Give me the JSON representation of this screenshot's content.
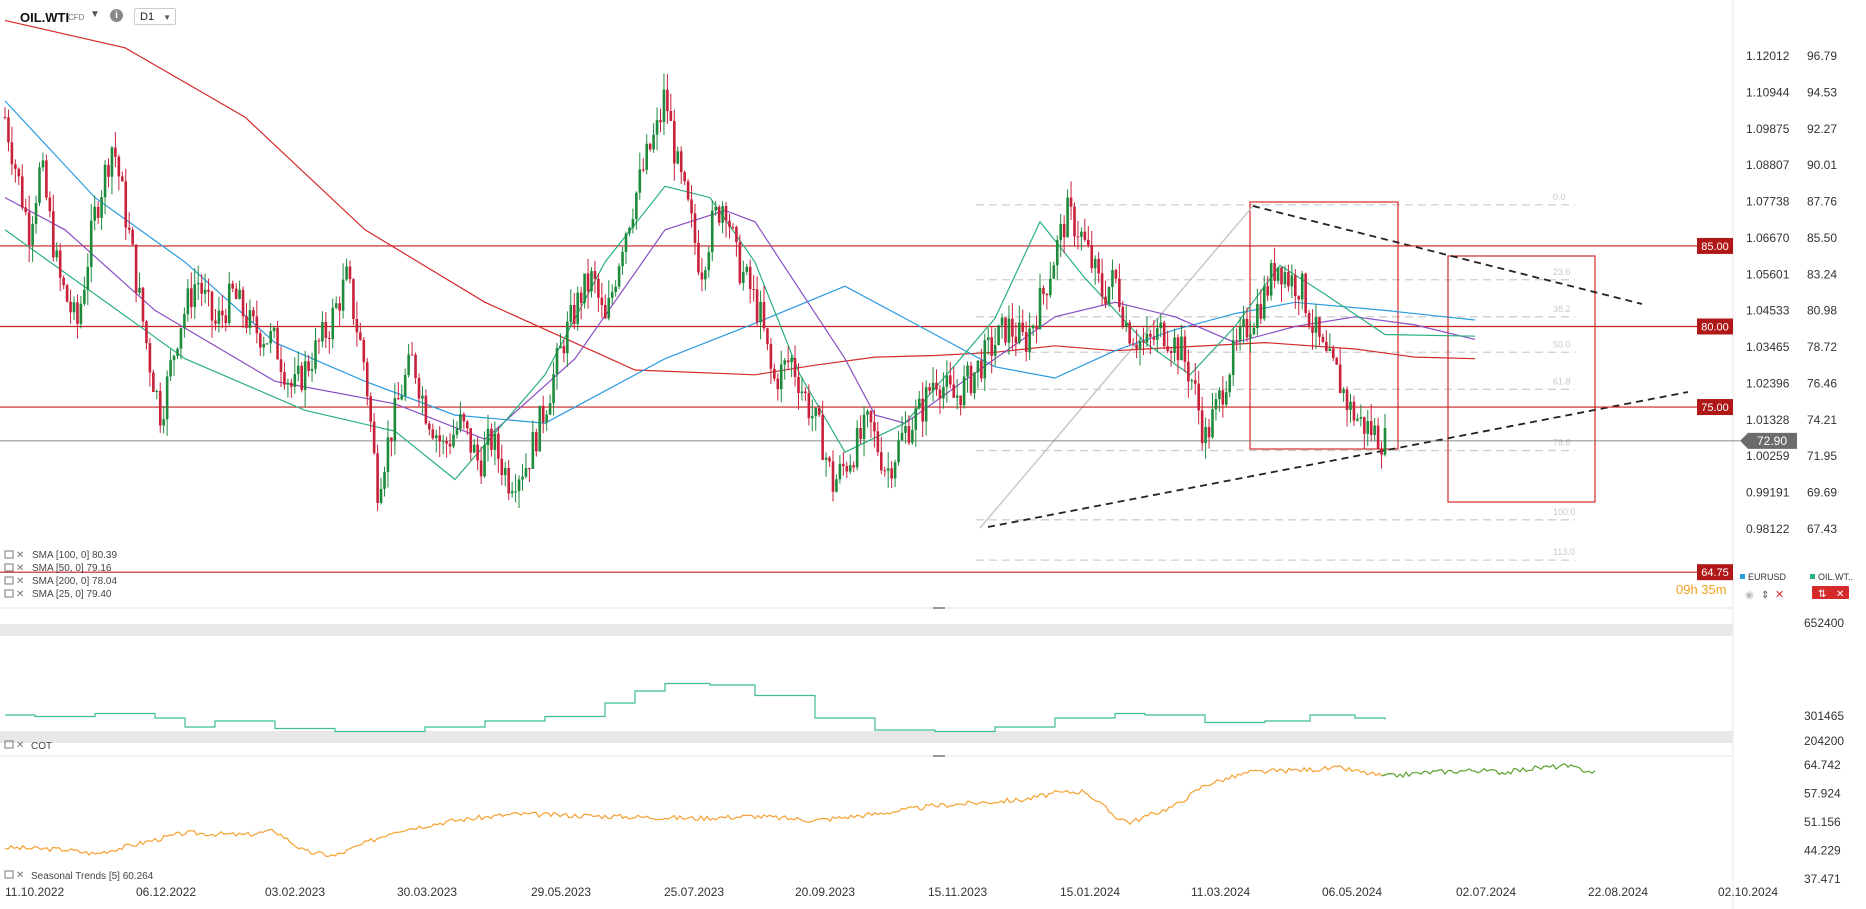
{
  "toolbar": {
    "symbol": "OIL.WTI",
    "symbol_type": "CFD",
    "timeframe": "D1"
  },
  "chart_data": [
    {
      "type": "line",
      "panel": "price",
      "series_kind": "candlestick",
      "x_ticks": [
        "11.10.2022",
        "06.12.2022",
        "03.02.2023",
        "30.03.2023",
        "29.05.2023",
        "25.07.2023",
        "20.09.2023",
        "15.11.2023",
        "15.01.2024",
        "11.03.2024",
        "06.05.2024",
        "02.07.2024",
        "22.08.2024",
        "02.10.2024"
      ],
      "y_ticks_left": [
        "1.12012",
        "1.10944",
        "1.09875",
        "1.08807",
        "1.07738",
        "1.06670",
        "1.05601",
        "1.04533",
        "1.03465",
        "1.02396",
        "1.01328",
        "1.00259",
        "0.99191",
        "0.98122"
      ],
      "y_ticks_right": [
        "96.79",
        "94.53",
        "92.27",
        "90.01",
        "87.76",
        "85.50",
        "83.24",
        "80.98",
        "78.72",
        "76.46",
        "74.21",
        "71.95",
        "69.69",
        "67.43"
      ],
      "ylim": [
        64.0,
        98.0
      ],
      "price_levels": [
        {
          "label": "85.00",
          "value": 85.0
        },
        {
          "label": "80.00",
          "value": 80.0
        },
        {
          "label": "75.00",
          "value": 75.0
        },
        {
          "label": "64.75",
          "value": 64.75
        }
      ],
      "current_price": {
        "label": "72.90",
        "value": 72.9
      },
      "countdown": "09h 35m",
      "fib_levels": [
        {
          "label": "0.0",
          "value": 87.55
        },
        {
          "label": "23.6",
          "value": 82.9
        },
        {
          "label": "38.2",
          "value": 80.6
        },
        {
          "label": "50.0",
          "value": 78.4
        },
        {
          "label": "61.8",
          "value": 76.1
        },
        {
          "label": "78.6",
          "value": 72.3
        },
        {
          "label": "100.0",
          "value": 68.0
        },
        {
          "label": "113.0",
          "value": 65.5
        }
      ],
      "legend": [
        {
          "name": "SMA [100, 0]",
          "value": "80.39",
          "color": "#2b9be0"
        },
        {
          "name": "SMA [50, 0]",
          "value": "79.16",
          "color": "#8a4fc5"
        },
        {
          "name": "SMA [200, 0]",
          "value": "78.04",
          "color": "#d42a2a"
        },
        {
          "name": "SMA [25, 0]",
          "value": "79.40",
          "color": "#2ab07f"
        }
      ],
      "sma_values": {
        "sma200": [
          [
            0,
            99
          ],
          [
            40,
            97.3
          ],
          [
            80,
            93
          ],
          [
            120,
            86
          ],
          [
            160,
            81.5
          ],
          [
            210,
            77.3
          ],
          [
            250,
            77
          ],
          [
            270,
            77.6
          ],
          [
            290,
            78.1
          ],
          [
            310,
            78.2
          ],
          [
            330,
            78.4
          ],
          [
            350,
            78.8
          ],
          [
            370,
            78.5
          ],
          [
            390,
            78.7
          ],
          [
            420,
            79
          ],
          [
            450,
            78.6
          ],
          [
            470,
            78.1
          ],
          [
            490,
            78
          ]
        ],
        "sma100": [
          [
            0,
            94
          ],
          [
            30,
            88
          ],
          [
            60,
            84
          ],
          [
            90,
            79
          ],
          [
            120,
            76.6
          ],
          [
            150,
            74.5
          ],
          [
            180,
            74
          ],
          [
            220,
            78
          ],
          [
            250,
            80.2
          ],
          [
            280,
            82.5
          ],
          [
            300,
            80.5
          ],
          [
            330,
            77.5
          ],
          [
            350,
            76.8
          ],
          [
            370,
            78.5
          ],
          [
            390,
            79.8
          ],
          [
            410,
            80.8
          ],
          [
            430,
            81.5
          ],
          [
            460,
            81
          ],
          [
            480,
            80.6
          ],
          [
            490,
            80.4
          ]
        ],
        "sma50": [
          [
            0,
            88
          ],
          [
            20,
            86
          ],
          [
            50,
            81
          ],
          [
            90,
            76.6
          ],
          [
            130,
            75.2
          ],
          [
            160,
            73
          ],
          [
            190,
            78
          ],
          [
            220,
            86
          ],
          [
            240,
            87.2
          ],
          [
            250,
            86.5
          ],
          [
            280,
            78
          ],
          [
            290,
            74.5
          ],
          [
            300,
            74
          ],
          [
            330,
            78
          ],
          [
            350,
            80.6
          ],
          [
            370,
            81.5
          ],
          [
            390,
            80.6
          ],
          [
            410,
            79
          ],
          [
            430,
            80
          ],
          [
            450,
            80.6
          ],
          [
            470,
            80.1
          ],
          [
            490,
            79.2
          ]
        ],
        "sma25": [
          [
            0,
            86
          ],
          [
            30,
            82
          ],
          [
            60,
            78
          ],
          [
            100,
            74.8
          ],
          [
            130,
            73.5
          ],
          [
            150,
            70.5
          ],
          [
            180,
            77
          ],
          [
            200,
            84
          ],
          [
            220,
            88.7
          ],
          [
            235,
            88
          ],
          [
            250,
            84
          ],
          [
            265,
            77
          ],
          [
            280,
            72.2
          ],
          [
            300,
            74
          ],
          [
            330,
            80.5
          ],
          [
            345,
            86.5
          ],
          [
            360,
            83
          ],
          [
            380,
            79
          ],
          [
            395,
            77
          ],
          [
            410,
            80
          ],
          [
            425,
            83.8
          ],
          [
            440,
            82
          ],
          [
            460,
            79.5
          ],
          [
            490,
            79.4
          ]
        ]
      },
      "candles": [
        [
          0,
          93
        ],
        [
          8,
          86
        ],
        [
          12,
          90
        ],
        [
          18,
          83
        ],
        [
          24,
          80
        ],
        [
          30,
          87
        ],
        [
          36,
          91.5
        ],
        [
          42,
          85
        ],
        [
          48,
          78
        ],
        [
          52,
          74.5
        ],
        [
          58,
          80
        ],
        [
          64,
          83
        ],
        [
          70,
          80
        ],
        [
          76,
          82
        ],
        [
          82,
          80
        ],
        [
          90,
          79
        ],
        [
          96,
          76
        ],
        [
          102,
          78
        ],
        [
          108,
          80
        ],
        [
          114,
          83
        ],
        [
          120,
          77.5
        ],
        [
          124,
          70
        ],
        [
          128,
          73
        ],
        [
          132,
          76
        ],
        [
          136,
          78
        ],
        [
          140,
          75
        ],
        [
          146,
          72.5
        ],
        [
          152,
          74
        ],
        [
          158,
          71.5
        ],
        [
          162,
          73
        ],
        [
          168,
          70.5
        ],
        [
          174,
          71.5
        ],
        [
          180,
          75
        ],
        [
          186,
          79
        ],
        [
          192,
          82
        ],
        [
          196,
          83
        ],
        [
          200,
          80
        ],
        [
          206,
          85.5
        ],
        [
          210,
          88
        ],
        [
          214,
          90.5
        ],
        [
          218,
          92.5
        ],
        [
          220,
          94.5
        ],
        [
          224,
          90
        ],
        [
          228,
          87
        ],
        [
          232,
          83.5
        ],
        [
          236,
          86.5
        ],
        [
          240,
          88
        ],
        [
          244,
          84
        ],
        [
          248,
          82.5
        ],
        [
          252,
          80.5
        ],
        [
          256,
          76.5
        ],
        [
          262,
          78
        ],
        [
          268,
          75
        ],
        [
          272,
          73.2
        ],
        [
          276,
          70.2
        ],
        [
          282,
          72
        ],
        [
          288,
          74
        ],
        [
          294,
          71
        ],
        [
          300,
          73.5
        ],
        [
          306,
          75
        ],
        [
          310,
          77
        ],
        [
          316,
          75.5
        ],
        [
          322,
          76.8
        ],
        [
          328,
          78.5
        ],
        [
          334,
          80
        ],
        [
          340,
          79
        ],
        [
          346,
          82
        ],
        [
          350,
          84.5
        ],
        [
          354,
          87
        ],
        [
          358,
          86
        ],
        [
          362,
          84
        ],
        [
          366,
          82
        ],
        [
          370,
          83
        ],
        [
          374,
          80
        ],
        [
          380,
          78.7
        ],
        [
          386,
          79.8
        ],
        [
          392,
          78.5
        ],
        [
          396,
          76.5
        ],
        [
          400,
          73
        ],
        [
          404,
          75
        ],
        [
          408,
          77.5
        ],
        [
          414,
          80
        ],
        [
          420,
          82
        ],
        [
          424,
          84
        ],
        [
          428,
          83
        ],
        [
          432,
          82.5
        ],
        [
          436,
          80
        ],
        [
          440,
          78
        ],
        [
          444,
          77
        ],
        [
          448,
          75
        ],
        [
          452,
          74
        ],
        [
          456,
          73.5
        ],
        [
          460,
          72.9
        ]
      ]
    },
    {
      "type": "line",
      "panel": "cot",
      "name": "COT",
      "y_ticks": [
        "652400",
        "301465",
        "204200"
      ],
      "values": [
        [
          0,
          340
        ],
        [
          10,
          330
        ],
        [
          30,
          350
        ],
        [
          50,
          320
        ],
        [
          60,
          260
        ],
        [
          70,
          300
        ],
        [
          90,
          250
        ],
        [
          110,
          230
        ],
        [
          140,
          260
        ],
        [
          160,
          300
        ],
        [
          180,
          330
        ],
        [
          200,
          420
        ],
        [
          210,
          500
        ],
        [
          220,
          550
        ],
        [
          235,
          540
        ],
        [
          250,
          470
        ],
        [
          270,
          320
        ],
        [
          290,
          240
        ],
        [
          310,
          230
        ],
        [
          330,
          260
        ],
        [
          350,
          320
        ],
        [
          370,
          350
        ],
        [
          380,
          340
        ],
        [
          400,
          290
        ],
        [
          420,
          300
        ],
        [
          435,
          340
        ],
        [
          450,
          320
        ],
        [
          460,
          310
        ]
      ]
    },
    {
      "type": "line",
      "panel": "seasonal",
      "name": "Seasonal Trends [5]",
      "value": "60.264",
      "y_ticks": [
        "64.742",
        "57.924",
        "51.156",
        "44.229",
        "37.471"
      ],
      "values": [
        [
          0,
          45
        ],
        [
          20,
          44.5
        ],
        [
          30,
          43.5
        ],
        [
          45,
          46
        ],
        [
          60,
          48.5
        ],
        [
          80,
          48
        ],
        [
          90,
          49
        ],
        [
          100,
          44
        ],
        [
          110,
          43
        ],
        [
          130,
          49
        ],
        [
          150,
          51.5
        ],
        [
          170,
          53
        ],
        [
          200,
          52.5
        ],
        [
          230,
          52
        ],
        [
          250,
          52.5
        ],
        [
          270,
          51.5
        ],
        [
          290,
          53
        ],
        [
          310,
          55
        ],
        [
          340,
          56.5
        ],
        [
          350,
          58
        ],
        [
          360,
          58.5
        ],
        [
          370,
          52.5
        ],
        [
          375,
          51
        ],
        [
          390,
          55
        ],
        [
          400,
          60
        ],
        [
          415,
          63
        ],
        [
          430,
          63.5
        ],
        [
          445,
          64
        ],
        [
          460,
          62
        ],
        [
          475,
          63
        ],
        [
          490,
          63.5
        ],
        [
          500,
          63
        ],
        [
          510,
          64
        ],
        [
          520,
          64.5
        ],
        [
          530,
          63
        ]
      ]
    }
  ]
}
